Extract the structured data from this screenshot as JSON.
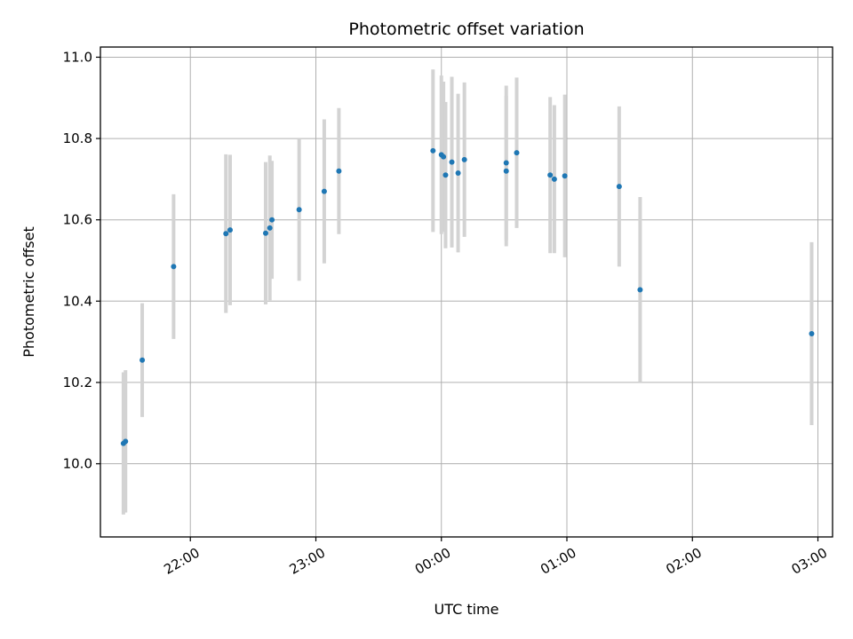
{
  "chart_data": {
    "type": "scatter",
    "title": "Photometric offset variation",
    "xlabel": "UTC time",
    "ylabel": "Photometric offset",
    "x_ticks": [
      "22:00",
      "23:00",
      "00:00",
      "01:00",
      "02:00",
      "03:00"
    ],
    "y_ticks": [
      "10.0",
      "10.2",
      "10.4",
      "10.6",
      "10.8",
      "11.0"
    ],
    "xlim": [
      "21:17",
      "03:07"
    ],
    "ylim": [
      9.82,
      11.025
    ],
    "grid": true,
    "point_color": "#1f77b4",
    "errorbar_color": "#d3d3d3",
    "points": [
      {
        "time": "21:28",
        "y": 10.05,
        "err": 0.175
      },
      {
        "time": "21:29",
        "y": 10.055,
        "err": 0.175
      },
      {
        "time": "21:37",
        "y": 10.255,
        "err": 0.14
      },
      {
        "time": "21:52",
        "y": 10.485,
        "err": 0.178
      },
      {
        "time": "22:17",
        "y": 10.566,
        "err": 0.195
      },
      {
        "time": "22:19",
        "y": 10.575,
        "err": 0.185
      },
      {
        "time": "22:36",
        "y": 10.567,
        "err": 0.175
      },
      {
        "time": "22:38",
        "y": 10.58,
        "err": 0.178
      },
      {
        "time": "22:39",
        "y": 10.6,
        "err": 0.145
      },
      {
        "time": "22:52",
        "y": 10.625,
        "err": 0.175
      },
      {
        "time": "23:04",
        "y": 10.67,
        "err": 0.177
      },
      {
        "time": "23:11",
        "y": 10.72,
        "err": 0.155
      },
      {
        "time": "23:56",
        "y": 10.77,
        "err": 0.2
      },
      {
        "time": "00:00",
        "y": 10.76,
        "err": 0.195
      },
      {
        "time": "00:01",
        "y": 10.755,
        "err": 0.185
      },
      {
        "time": "00:02",
        "y": 10.71,
        "err": 0.18
      },
      {
        "time": "00:05",
        "y": 10.742,
        "err": 0.21
      },
      {
        "time": "00:08",
        "y": 10.715,
        "err": 0.195
      },
      {
        "time": "00:11",
        "y": 10.748,
        "err": 0.19
      },
      {
        "time": "00:31",
        "y": 10.74,
        "err": 0.19
      },
      {
        "time": "00:31",
        "y": 10.72,
        "err": 0.185
      },
      {
        "time": "00:36",
        "y": 10.765,
        "err": 0.185
      },
      {
        "time": "00:52",
        "y": 10.71,
        "err": 0.192
      },
      {
        "time": "00:54",
        "y": 10.7,
        "err": 0.182
      },
      {
        "time": "00:59",
        "y": 10.708,
        "err": 0.2
      },
      {
        "time": "01:25",
        "y": 10.682,
        "err": 0.197
      },
      {
        "time": "01:35",
        "y": 10.428,
        "err": 0.228
      },
      {
        "time": "02:57",
        "y": 10.32,
        "err": 0.225
      }
    ]
  }
}
